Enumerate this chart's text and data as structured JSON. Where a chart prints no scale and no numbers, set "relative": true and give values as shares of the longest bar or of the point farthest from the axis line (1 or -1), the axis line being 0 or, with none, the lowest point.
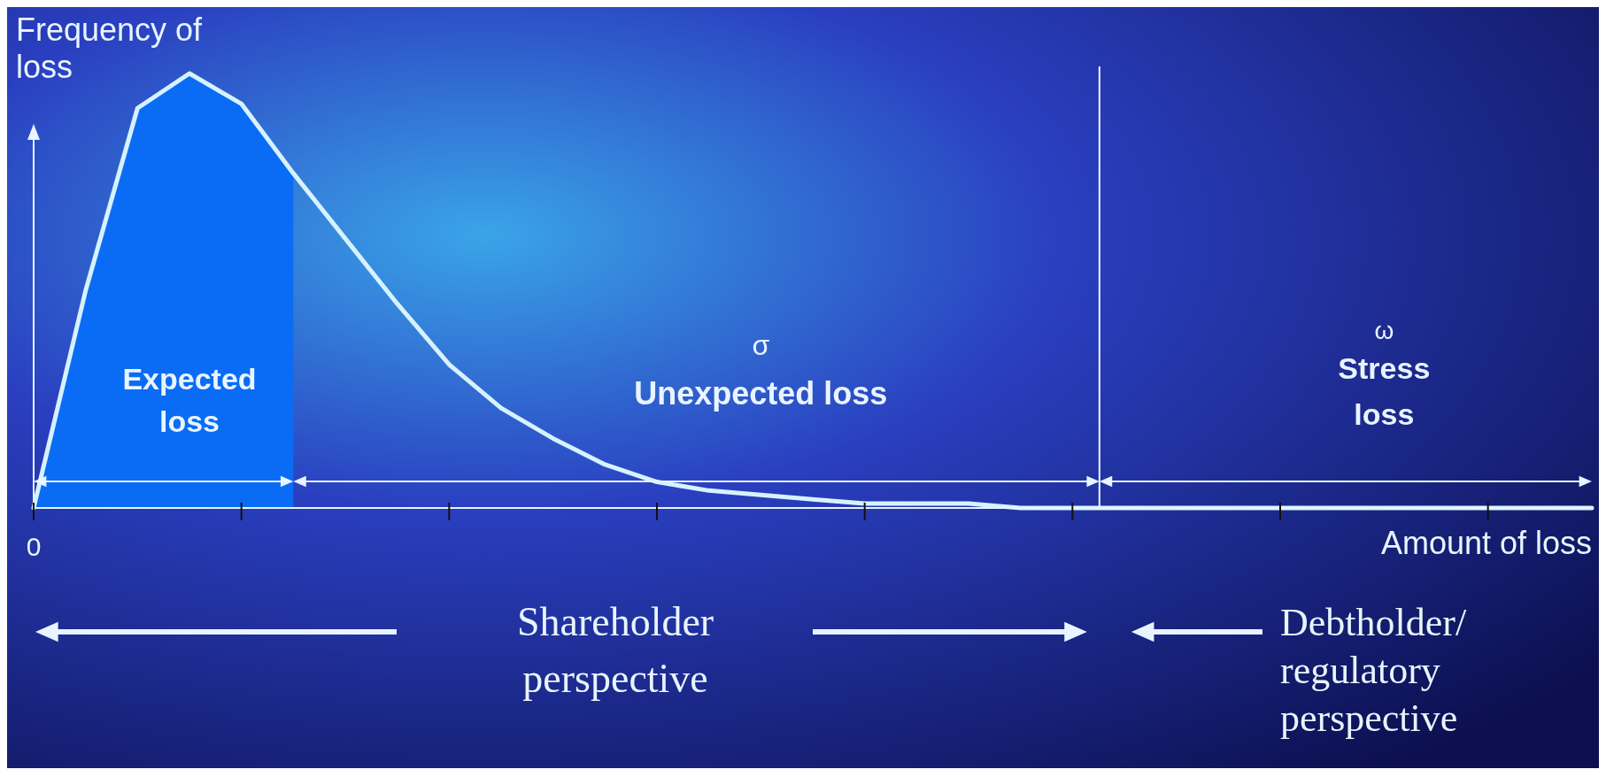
{
  "chart_data": {
    "type": "line",
    "relative": true,
    "xlabel": "Amount of loss",
    "ylabel": "Frequency of loss",
    "categories": [
      null,
      null,
      null,
      null,
      null,
      null,
      null,
      null,
      null,
      null,
      null,
      null,
      null,
      null,
      null,
      null,
      null,
      null,
      null,
      null,
      null,
      null,
      null,
      null,
      null,
      null,
      null,
      null,
      null,
      null,
      null
    ],
    "series": [
      {
        "type": "area",
        "color": "#0a6cf5",
        "values": [
          0,
          0.5,
          0.92,
          1,
          0.93,
          0.77,
          null,
          null,
          null,
          null,
          null,
          null,
          null,
          null,
          null,
          null,
          null,
          null,
          null,
          null,
          null,
          null,
          null,
          null,
          null,
          null,
          null,
          null,
          null,
          null,
          null
        ]
      },
      {
        "color": "#d6f2ff",
        "values": [
          0,
          0.5,
          0.92,
          1,
          0.93,
          0.77,
          0.62,
          0.47,
          0.33,
          0.23,
          0.16,
          0.1,
          0.06,
          0.04,
          0.03,
          0.02,
          0.01,
          0.01,
          0.01,
          0,
          0,
          0,
          0,
          0,
          0,
          0,
          0,
          0,
          0,
          0,
          0
        ]
      }
    ],
    "annotations": [
      "Expected loss",
      "σ",
      "Unexpected loss",
      "ω",
      "Stress loss",
      "Shareholder perspective",
      "Debtholder/ regulatory perspective",
      "0"
    ]
  }
}
